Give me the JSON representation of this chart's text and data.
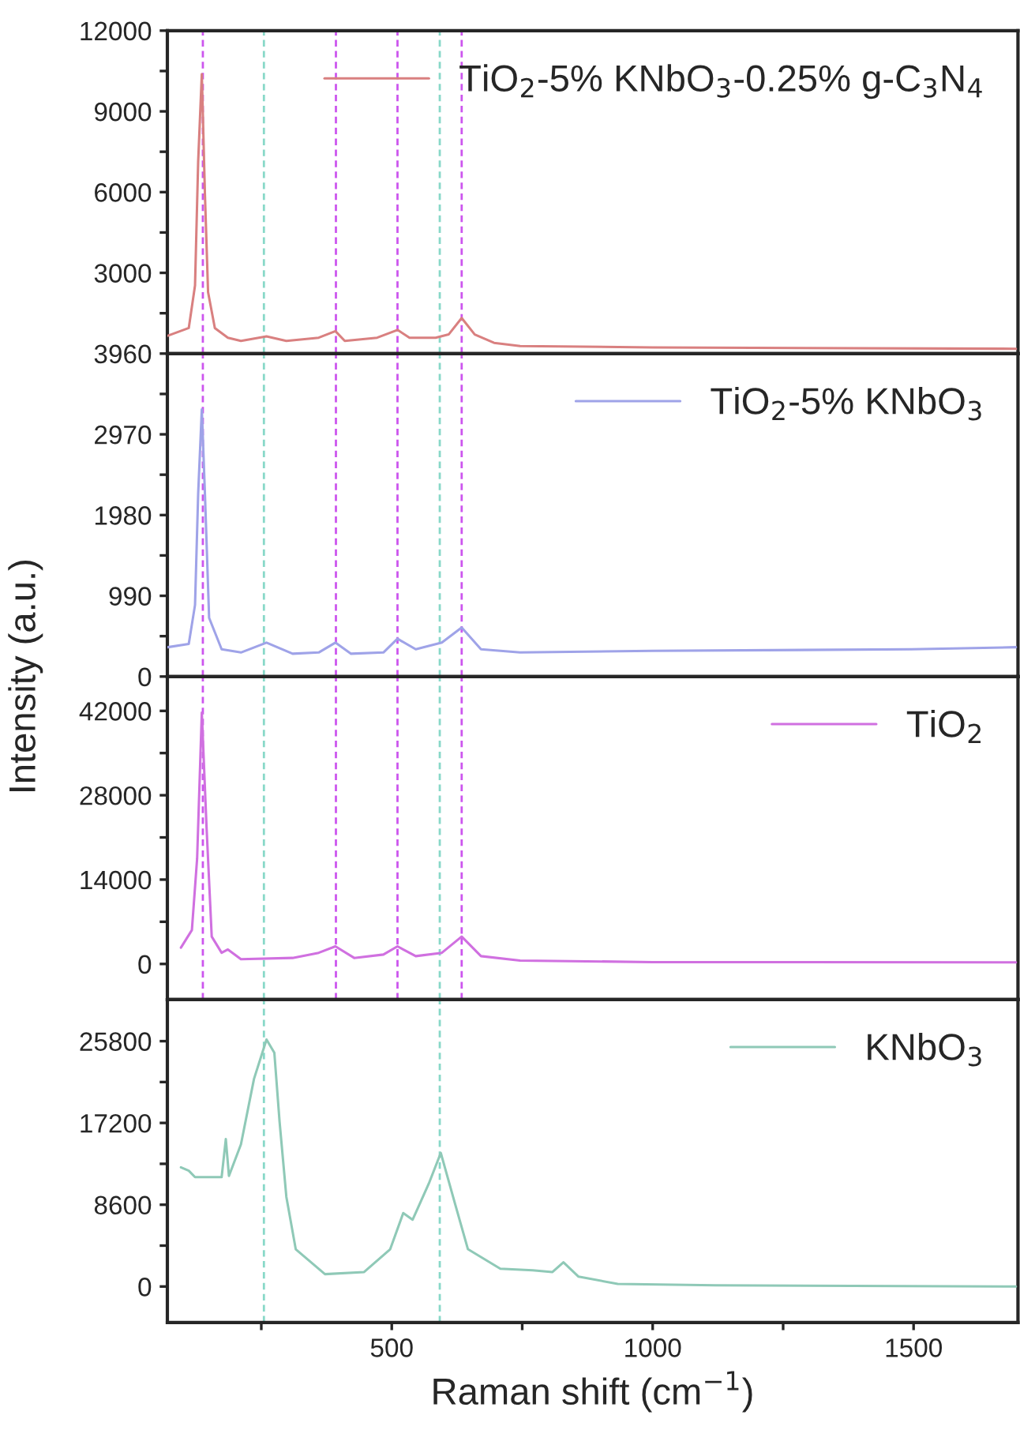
{
  "chart_data": [
    {
      "type": "line",
      "ylabel": "Intensity (a.u.)",
      "xlim": [
        70,
        1700
      ],
      "xticks": [
        {
          "value": 250,
          "label": null
        },
        500,
        {
          "value": 750,
          "label": null
        },
        1000,
        {
          "value": 1250,
          "label": null
        },
        1500
      ],
      "ylim": [
        0,
        12000
      ],
      "yticks": [
        {
          "value": 1500,
          "label": null
        },
        3000,
        {
          "value": 4500,
          "label": null
        },
        6000,
        {
          "value": 7500,
          "label": null
        },
        9000,
        {
          "value": 10500,
          "label": null
        },
        12000
      ],
      "tick_labels": "y",
      "legend": "top right",
      "ref_lines": [
        {
          "axis": "x",
          "value": 138,
          "color": "#cc55ee",
          "line_style": "dashed"
        },
        {
          "axis": "x",
          "value": 393,
          "color": "#cc55ee",
          "line_style": "dashed"
        },
        {
          "axis": "x",
          "value": 511,
          "color": "#cc55ee",
          "line_style": "dashed"
        },
        {
          "axis": "x",
          "value": 634,
          "color": "#cc55ee",
          "line_style": "dashed"
        },
        {
          "axis": "x",
          "value": 255,
          "color": "#88d8c8",
          "line_style": "dashed"
        },
        {
          "axis": "x",
          "value": 592,
          "color": "#88d8c8",
          "line_style": "dashed"
        }
      ],
      "series": [
        {
          "name": "TiO$_{2}$-5% KNbO$_{3}$-0.25% g-C$_{3}$N$_{4}$",
          "color": "#d98080",
          "x": [
            71,
            111,
            123,
            129,
            136,
            142,
            148,
            161,
            186,
            211,
            260,
            298,
            360,
            392,
            410,
            472,
            511,
            534,
            584,
            609,
            634,
            659,
            696,
            746,
            1000,
            1696
          ],
          "values": [
            667,
            950,
            2530,
            7120,
            10380,
            5910,
            2280,
            950,
            590,
            470,
            640,
            470,
            590,
            835,
            470,
            590,
            880,
            590,
            590,
            710,
            1320,
            710,
            400,
            280,
            230,
            180
          ]
        }
      ]
    },
    {
      "type": "line",
      "xlim": [
        70,
        1700
      ],
      "xticks": [
        {
          "value": 250,
          "label": null
        },
        500,
        {
          "value": 750,
          "label": null
        },
        1000,
        {
          "value": 1250,
          "label": null
        },
        1500
      ],
      "ylim": [
        0,
        3960
      ],
      "yticks": [
        0,
        {
          "value": 495,
          "label": null
        },
        990,
        {
          "value": 1485,
          "label": null
        },
        1980,
        {
          "value": 2475,
          "label": null
        },
        2970,
        {
          "value": 3465,
          "label": null
        },
        3960
      ],
      "tick_labels": "y",
      "legend": "top right",
      "ref_lines": [
        {
          "axis": "x",
          "value": 138,
          "color": "#cc55ee",
          "line_style": "dashed"
        },
        {
          "axis": "x",
          "value": 393,
          "color": "#cc55ee",
          "line_style": "dashed"
        },
        {
          "axis": "x",
          "value": 511,
          "color": "#cc55ee",
          "line_style": "dashed"
        },
        {
          "axis": "x",
          "value": 634,
          "color": "#cc55ee",
          "line_style": "dashed"
        },
        {
          "axis": "x",
          "value": 255,
          "color": "#88d8c8",
          "line_style": "dashed"
        },
        {
          "axis": "x",
          "value": 592,
          "color": "#88d8c8",
          "line_style": "dashed"
        }
      ],
      "series": [
        {
          "name": "TiO$_{2}$-5% KNbO$_{3}$",
          "color": "#9fa3e8",
          "x": [
            71,
            111,
            123,
            129,
            136,
            142,
            150,
            174,
            211,
            260,
            310,
            360,
            392,
            422,
            484,
            511,
            546,
            596,
            634,
            671,
            746,
            1000,
            1496,
            1696
          ],
          "values": [
            360,
            400,
            878,
            2237,
            3275,
            2237,
            719,
            334,
            295,
            416,
            280,
            295,
            416,
            280,
            295,
            464,
            334,
            416,
            600,
            334,
            296,
            315,
            334,
            360
          ]
        }
      ]
    },
    {
      "type": "line",
      "xlim": [
        70,
        1700
      ],
      "xticks": [
        {
          "value": 250,
          "label": null
        },
        500,
        {
          "value": 750,
          "label": null
        },
        1000,
        {
          "value": 1250,
          "label": null
        },
        1500
      ],
      "ylim": [
        -5900,
        47700
      ],
      "yticks": [
        0,
        {
          "value": 7000,
          "label": null
        },
        14000,
        {
          "value": 21000,
          "label": null
        },
        28000,
        {
          "value": 35000,
          "label": null
        },
        42000
      ],
      "tick_labels": "y",
      "legend": "top right",
      "ref_lines": [
        {
          "axis": "x",
          "value": 138,
          "color": "#cc55ee",
          "line_style": "dashed"
        },
        {
          "axis": "x",
          "value": 393,
          "color": "#cc55ee",
          "line_style": "dashed"
        },
        {
          "axis": "x",
          "value": 511,
          "color": "#cc55ee",
          "line_style": "dashed"
        },
        {
          "axis": "x",
          "value": 634,
          "color": "#cc55ee",
          "line_style": "dashed"
        },
        {
          "axis": "x",
          "value": 255,
          "color": "#88d8c8",
          "line_style": "dashed"
        },
        {
          "axis": "x",
          "value": 592,
          "color": "#88d8c8",
          "line_style": "dashed"
        }
      ],
      "series": [
        {
          "name": "TiO$_{2}$",
          "color": "#d070e0",
          "x": [
            96,
            117,
            127,
            136,
            145,
            155,
            174,
            186,
            211,
            310,
            360,
            392,
            428,
            484,
            511,
            546,
            596,
            634,
            671,
            746,
            1000,
            1696
          ],
          "values": [
            2710,
            5630,
            17470,
            41710,
            22860,
            4540,
            1850,
            2400,
            780,
            1000,
            1850,
            2920,
            1000,
            1560,
            2920,
            1300,
            1850,
            4540,
            1300,
            570,
            310,
            260
          ]
        }
      ]
    },
    {
      "type": "line",
      "xlabel": "Raman shift (cm$^{−1}$)",
      "xlim": [
        70,
        1700
      ],
      "xticks": [
        {
          "value": 250,
          "label": null
        },
        500,
        {
          "value": 750,
          "label": null
        },
        1000,
        {
          "value": 1250,
          "label": null
        },
        1500
      ],
      "ylim": [
        -3780,
        30180
      ],
      "yticks": [
        0,
        {
          "value": 4300,
          "label": null
        },
        8600,
        {
          "value": 12900,
          "label": null
        },
        17200,
        {
          "value": 21500,
          "label": null
        },
        25800
      ],
      "legend": "top right",
      "ref_lines": [
        {
          "axis": "x",
          "value": 255,
          "color": "#88d8c8",
          "line_style": "dashed"
        },
        {
          "axis": "x",
          "value": 592,
          "color": "#88d8c8",
          "line_style": "dashed"
        }
      ],
      "series": [
        {
          "name": "KNbO$_{3}$",
          "color": "#8fc9b7",
          "x": [
            96,
            111,
            123,
            174,
            182,
            188,
            211,
            236,
            260,
            275,
            285,
            298,
            316,
            372,
            447,
            497,
            522,
            540,
            571,
            594,
            621,
            646,
            708,
            770,
            808,
            829,
            858,
            933,
            1120,
            1696
          ],
          "values": [
            12530,
            12180,
            11500,
            11500,
            15500,
            11630,
            14950,
            21830,
            25970,
            24580,
            17350,
            9430,
            3920,
            1300,
            1520,
            3920,
            7720,
            7020,
            10820,
            14050,
            8750,
            3920,
            1870,
            1700,
            1520,
            2550,
            1030,
            280,
            130,
            0
          ]
        }
      ]
    }
  ]
}
